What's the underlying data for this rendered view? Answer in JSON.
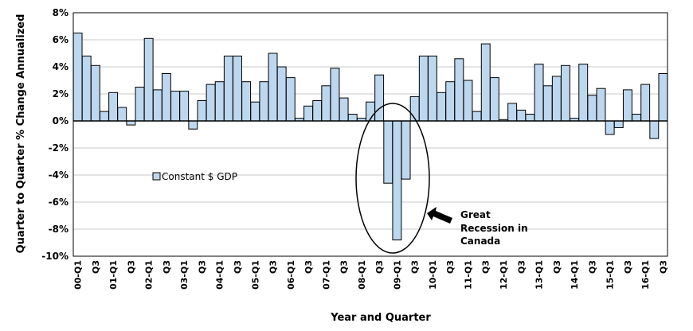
{
  "chart_data": {
    "type": "bar",
    "xlabel": "Year and Quarter",
    "ylabel": "Quarter to Quarter % Change Annualized",
    "ylim": [
      -10,
      8
    ],
    "y_tick_labels": [
      "8%",
      "6%",
      "4%",
      "2%",
      "0%",
      "-2%",
      "-4%",
      "-6%",
      "-8%",
      "-10%"
    ],
    "grid": true,
    "bar_color": "#bdd7ee",
    "categories": [
      "00-Q1",
      "00-Q2",
      "00-Q3",
      "00-Q4",
      "01-Q1",
      "01-Q2",
      "01-Q3",
      "01-Q4",
      "02-Q1",
      "02-Q2",
      "02-Q3",
      "02-Q4",
      "03-Q1",
      "03-Q2",
      "03-Q3",
      "03-Q4",
      "04-Q1",
      "04-Q2",
      "04-Q3",
      "04-Q4",
      "05-Q1",
      "05-Q2",
      "05-Q3",
      "05-Q4",
      "06-Q1",
      "06-Q2",
      "06-Q3",
      "06-Q4",
      "07-Q1",
      "07-Q2",
      "07-Q3",
      "07-Q4",
      "08-Q1",
      "08-Q2",
      "08-Q3",
      "08-Q4",
      "09-Q1",
      "09-Q2",
      "09-Q3",
      "09-Q4",
      "10-Q1",
      "10-Q2",
      "10-Q3",
      "10-Q4",
      "11-Q1",
      "11-Q2",
      "11-Q3",
      "11-Q4",
      "12-Q1",
      "12-Q2",
      "12-Q3",
      "12-Q4",
      "13-Q1",
      "13-Q2",
      "13-Q3",
      "13-Q4",
      "14-Q1",
      "14-Q2",
      "14-Q3",
      "14-Q4",
      "15-Q1",
      "15-Q2",
      "15-Q3",
      "15-Q4",
      "16-Q1",
      "16-Q2",
      "16-Q3"
    ],
    "x_tick_labels": [
      "00-Q1",
      "",
      "Q3",
      "",
      "01-Q1",
      "",
      "Q3",
      "",
      "02-Q1",
      "",
      "Q3",
      "",
      "03-Q1",
      "",
      "Q3",
      "",
      "04-Q1",
      "",
      "Q3",
      "",
      "05-Q1",
      "",
      "Q3",
      "",
      "06-Q1",
      "",
      "Q3",
      "",
      "07-Q1",
      "",
      "Q3",
      "",
      "08-Q1",
      "",
      "Q3",
      "",
      "09-Q1",
      "",
      "Q3",
      "",
      "10-Q1",
      "",
      "Q3",
      "",
      "11-Q1",
      "",
      "Q3",
      "",
      "12-Q1",
      "",
      "Q3",
      "",
      "13-Q1",
      "",
      "Q3",
      "",
      "14-Q1",
      "",
      "Q3",
      "",
      "15-Q1",
      "",
      "Q3",
      "",
      "16-Q1",
      "",
      "Q3"
    ],
    "series": [
      {
        "name": "Constant $ GDP",
        "values": [
          6.5,
          4.8,
          4.1,
          0.7,
          2.1,
          1.0,
          -0.3,
          2.5,
          6.1,
          2.3,
          3.5,
          2.2,
          2.2,
          -0.6,
          1.5,
          2.7,
          2.9,
          4.8,
          4.8,
          2.9,
          1.4,
          2.9,
          5.0,
          4.0,
          3.2,
          0.2,
          1.1,
          1.5,
          2.6,
          3.9,
          1.7,
          0.5,
          0.2,
          1.4,
          3.4,
          -4.6,
          -8.8,
          -4.3,
          1.8,
          4.8,
          4.8,
          2.1,
          2.9,
          4.6,
          3.0,
          0.7,
          5.7,
          3.2,
          0.1,
          1.3,
          0.8,
          0.5,
          4.2,
          2.6,
          3.3,
          4.1,
          0.2,
          4.2,
          1.9,
          2.4,
          -1.0,
          -0.5,
          2.3,
          0.5,
          2.7,
          -1.3,
          3.5
        ]
      }
    ],
    "legend": {
      "placement": "middle-left",
      "label": "Constant $ GDP"
    },
    "annotation": {
      "lines": [
        "Great",
        "Recession in",
        "Canada"
      ]
    }
  }
}
